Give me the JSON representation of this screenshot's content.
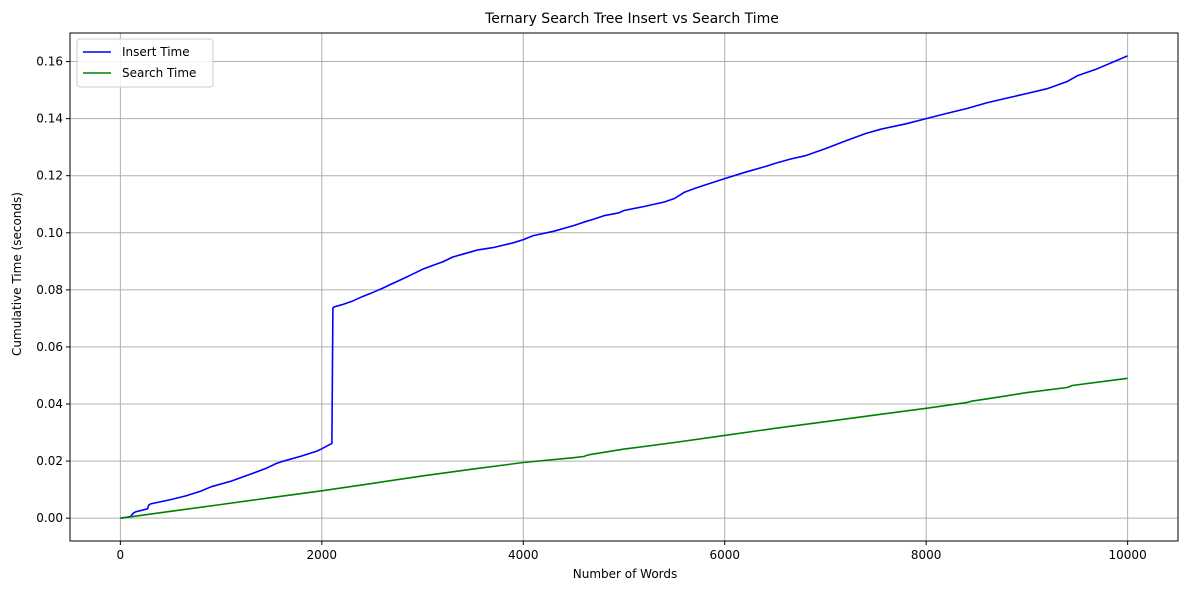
{
  "chart_data": {
    "type": "line",
    "title": "Ternary Search Tree Insert vs Search Time",
    "xlabel": "Number of Words",
    "ylabel": "Cumulative Time (seconds)",
    "xlim": [
      -500,
      10500
    ],
    "ylim": [
      -0.008,
      0.17
    ],
    "xticks": [
      0,
      2000,
      4000,
      6000,
      8000,
      10000
    ],
    "xtick_labels": [
      "0",
      "2000",
      "4000",
      "6000",
      "8000",
      "10000"
    ],
    "yticks": [
      0.0,
      0.02,
      0.04,
      0.06,
      0.08,
      0.1,
      0.12,
      0.14,
      0.16
    ],
    "ytick_labels": [
      "0.00",
      "0.02",
      "0.04",
      "0.06",
      "0.08",
      "0.10",
      "0.12",
      "0.14",
      "0.16"
    ],
    "grid": true,
    "legend_position": "top-left",
    "series": [
      {
        "name": "Insert Time",
        "color": "#0000ff",
        "x": [
          0,
          100,
          130,
          150,
          270,
          280,
          300,
          500,
          650,
          800,
          900,
          1100,
          1300,
          1450,
          1550,
          1600,
          1800,
          1950,
          2000,
          2010,
          2100,
          2110,
          2120,
          2200,
          2300,
          2400,
          2500,
          2600,
          2700,
          2800,
          2900,
          3000,
          3150,
          3200,
          3300,
          3400,
          3500,
          3550,
          3700,
          3900,
          4000,
          4100,
          4300,
          4500,
          4600,
          4700,
          4800,
          4950,
          5000,
          5200,
          5400,
          5500,
          5570,
          5600,
          5700,
          5800,
          6000,
          6200,
          6400,
          6500,
          6650,
          6800,
          7000,
          7200,
          7400,
          7550,
          7800,
          8000,
          8200,
          8400,
          8600,
          8800,
          9000,
          9200,
          9400,
          9450,
          9500,
          9700,
          9900,
          10000
        ],
        "y": [
          0.0,
          0.0005,
          0.0018,
          0.0022,
          0.0033,
          0.0045,
          0.005,
          0.0065,
          0.0078,
          0.0095,
          0.011,
          0.013,
          0.0155,
          0.0175,
          0.0192,
          0.0198,
          0.0218,
          0.0235,
          0.0243,
          0.0245,
          0.0262,
          0.0735,
          0.074,
          0.0748,
          0.076,
          0.0776,
          0.079,
          0.0805,
          0.0822,
          0.0838,
          0.0855,
          0.0872,
          0.0892,
          0.0898,
          0.0915,
          0.0925,
          0.0935,
          0.094,
          0.0948,
          0.0965,
          0.0976,
          0.099,
          0.1005,
          0.1025,
          0.1037,
          0.1048,
          0.106,
          0.107,
          0.1078,
          0.1092,
          0.1108,
          0.112,
          0.1135,
          0.1142,
          0.1155,
          0.1167,
          0.119,
          0.1212,
          0.1232,
          0.1243,
          0.1258,
          0.127,
          0.1295,
          0.1322,
          0.1348,
          0.1363,
          0.1382,
          0.14,
          0.1418,
          0.1435,
          0.1455,
          0.1472,
          0.1488,
          0.1505,
          0.153,
          0.154,
          0.155,
          0.1575,
          0.1605,
          0.162
        ]
      },
      {
        "name": "Search Time",
        "color": "#008000",
        "x": [
          0,
          500,
          1000,
          1500,
          2000,
          2500,
          3000,
          3500,
          4000,
          4500,
          4600,
          4650,
          5000,
          5500,
          6000,
          6500,
          7000,
          7500,
          8000,
          8400,
          8450,
          8600,
          9000,
          9400,
          9450,
          10000
        ],
        "y": [
          0.0,
          0.0024,
          0.0048,
          0.0072,
          0.0096,
          0.0122,
          0.0148,
          0.0172,
          0.0195,
          0.0212,
          0.0216,
          0.0222,
          0.0242,
          0.0265,
          0.029,
          0.0315,
          0.0338,
          0.0362,
          0.0385,
          0.0405,
          0.041,
          0.0418,
          0.044,
          0.0458,
          0.0465,
          0.049
        ]
      }
    ]
  }
}
